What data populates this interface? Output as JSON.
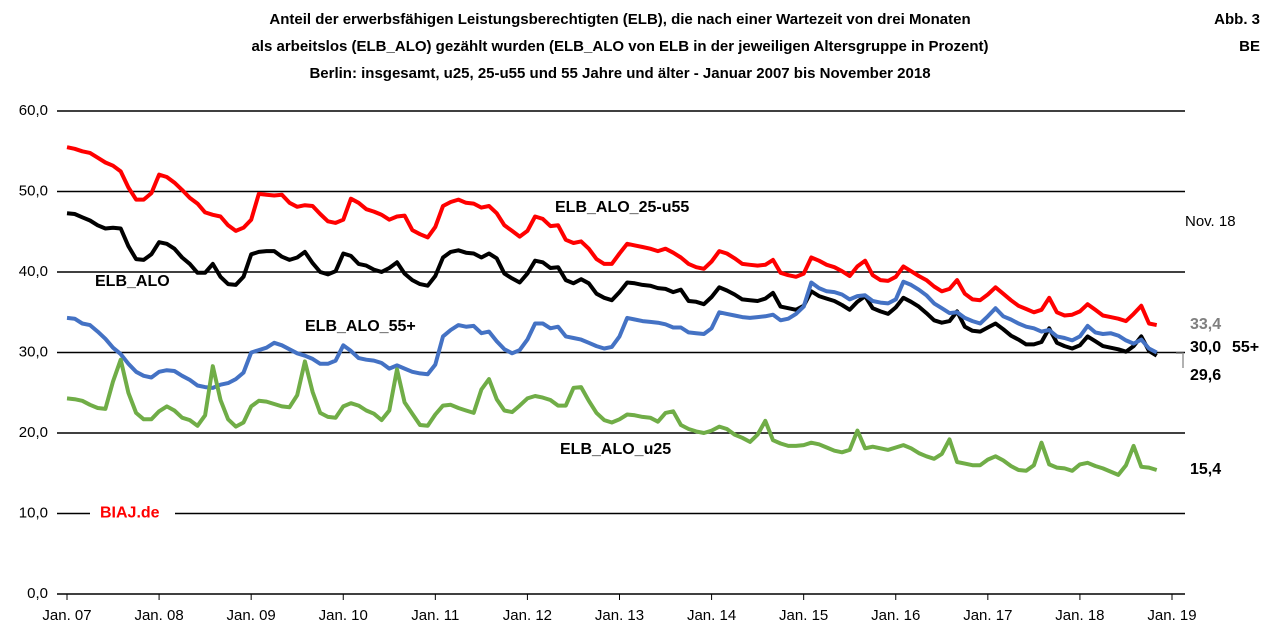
{
  "chart_data": {
    "type": "line",
    "title": [
      "Anteil der erwerbsfähigen Leistungsberechtigten (ELB), die nach einer Wartezeit von drei Monaten",
      "als arbeitslos (ELB_ALO) gezählt wurden (ELB_ALO von ELB in der jeweiligen Altersgruppe in Prozent)",
      "Berlin: insgesamt, u25,  25-u55 und 55 Jahre und älter - Januar 2007 bis November 2018"
    ],
    "figure_label": "Abb. 3",
    "region": "BE",
    "source": "BIAJ.de",
    "end_date_label": "Nov. 18",
    "categories": [
      "Jan. 07",
      null,
      null,
      null,
      null,
      null,
      null,
      null,
      null,
      null,
      null,
      null,
      "Jan. 08",
      null,
      null,
      null,
      null,
      null,
      null,
      null,
      null,
      null,
      null,
      null,
      "Jan. 09",
      null,
      null,
      null,
      null,
      null,
      null,
      null,
      null,
      null,
      null,
      null,
      "Jan. 10",
      null,
      null,
      null,
      null,
      null,
      null,
      null,
      null,
      null,
      null,
      null,
      "Jan. 11",
      null,
      null,
      null,
      null,
      null,
      null,
      null,
      null,
      null,
      null,
      null,
      "Jan. 12",
      null,
      null,
      null,
      null,
      null,
      null,
      null,
      null,
      null,
      null,
      null,
      "Jan. 13",
      null,
      null,
      null,
      null,
      null,
      null,
      null,
      null,
      null,
      null,
      null,
      "Jan. 14",
      null,
      null,
      null,
      null,
      null,
      null,
      null,
      null,
      null,
      null,
      null,
      "Jan. 15",
      null,
      null,
      null,
      null,
      null,
      null,
      null,
      null,
      null,
      null,
      null,
      "Jan. 16",
      null,
      null,
      null,
      null,
      null,
      null,
      null,
      null,
      null,
      null,
      null,
      "Jan. 17",
      null,
      null,
      null,
      null,
      null,
      null,
      null,
      null,
      null,
      null,
      null,
      "Jan. 18",
      null,
      null,
      null,
      null,
      null,
      null,
      null,
      null,
      null,
      null,
      null,
      "Jan. 19"
    ],
    "ylim": [
      0,
      60
    ],
    "yticks": [
      {
        "value": 0,
        "label": "0,0"
      },
      {
        "value": 10,
        "label": "10,0"
      },
      {
        "value": 20,
        "label": "20,0"
      },
      {
        "value": 30,
        "label": "30,0"
      },
      {
        "value": 40,
        "label": "40,0"
      },
      {
        "value": 50,
        "label": "50,0"
      },
      {
        "value": 60,
        "label": "60,0"
      }
    ],
    "grid": true,
    "series": [
      {
        "name": "ELB_ALO_25-u55",
        "color": "#ff0000",
        "end_label": "33,4",
        "end_label_color": "#7f7f7f",
        "values": [
          55.5,
          55.3,
          55.0,
          54.8,
          54.2,
          53.6,
          53.2,
          52.5,
          50.5,
          49.0,
          49.0,
          49.8,
          52.1,
          51.8,
          51.1,
          50.2,
          49.2,
          48.5,
          47.4,
          47.1,
          46.9,
          45.8,
          45.1,
          45.5,
          46.5,
          49.7,
          49.6,
          49.5,
          49.6,
          48.6,
          48.1,
          48.3,
          48.2,
          47.2,
          46.3,
          46.1,
          46.5,
          49.1,
          48.6,
          47.8,
          47.5,
          47.1,
          46.5,
          46.9,
          47.0,
          45.2,
          44.7,
          44.3,
          45.6,
          48.2,
          48.7,
          49.0,
          48.6,
          48.5,
          48.0,
          48.2,
          47.3,
          45.8,
          45.1,
          44.4,
          45.1,
          46.9,
          46.6,
          45.7,
          45.8,
          44.0,
          43.6,
          43.8,
          42.9,
          41.6,
          41.0,
          41.0,
          42.3,
          43.5,
          43.3,
          43.1,
          42.9,
          42.6,
          42.9,
          42.4,
          41.8,
          41.0,
          40.6,
          40.4,
          41.3,
          42.6,
          42.3,
          41.7,
          41.0,
          40.9,
          40.8,
          40.9,
          41.5,
          39.9,
          39.6,
          39.4,
          39.8,
          41.8,
          41.4,
          40.9,
          40.6,
          40.1,
          39.5,
          40.7,
          41.4,
          39.6,
          39.0,
          38.9,
          39.4,
          40.7,
          40.1,
          39.5,
          39.0,
          38.2,
          37.6,
          37.9,
          39.0,
          37.3,
          36.6,
          36.5,
          37.2,
          38.1,
          37.3,
          36.5,
          35.8,
          35.4,
          35.0,
          35.3,
          36.8,
          35.0,
          34.6,
          34.7,
          35.1,
          36.0,
          35.3,
          34.6,
          34.4,
          34.2,
          33.9,
          34.8,
          35.8,
          33.6,
          33.4,
          null,
          null
        ]
      },
      {
        "name": "ELB_ALO",
        "color": "#000000",
        "end_label": "29,6",
        "end_label_color": "#000000",
        "values": [
          47.3,
          47.2,
          46.8,
          46.4,
          45.8,
          45.4,
          45.5,
          45.4,
          43.2,
          41.6,
          41.5,
          42.2,
          43.7,
          43.5,
          42.9,
          41.8,
          41.0,
          39.9,
          39.9,
          41.0,
          39.4,
          38.5,
          38.4,
          39.4,
          42.2,
          42.5,
          42.6,
          42.6,
          41.9,
          41.5,
          41.8,
          42.5,
          41.1,
          40.0,
          39.7,
          40.1,
          42.3,
          42.0,
          41.0,
          40.8,
          40.3,
          40.0,
          40.5,
          41.2,
          39.8,
          39.0,
          38.5,
          38.3,
          39.5,
          41.8,
          42.5,
          42.7,
          42.4,
          42.3,
          41.8,
          42.3,
          41.7,
          39.8,
          39.2,
          38.7,
          39.8,
          41.4,
          41.2,
          40.5,
          40.6,
          39.0,
          38.6,
          39.1,
          38.6,
          37.3,
          36.8,
          36.5,
          37.5,
          38.7,
          38.6,
          38.4,
          38.3,
          38.0,
          37.9,
          37.5,
          37.8,
          36.4,
          36.3,
          36.0,
          36.9,
          38.1,
          37.7,
          37.2,
          36.6,
          36.5,
          36.4,
          36.7,
          37.4,
          35.7,
          35.5,
          35.3,
          35.8,
          37.6,
          37.0,
          36.7,
          36.4,
          35.9,
          35.3,
          36.3,
          37.0,
          35.5,
          35.1,
          34.8,
          35.6,
          36.8,
          36.3,
          35.7,
          34.9,
          34.0,
          33.7,
          33.9,
          35.1,
          33.2,
          32.7,
          32.6,
          33.1,
          33.6,
          32.9,
          32.1,
          31.6,
          31.0,
          31.0,
          31.3,
          33.0,
          31.2,
          30.8,
          30.5,
          30.9,
          32.0,
          31.4,
          30.8,
          30.6,
          30.4,
          30.1,
          30.8,
          32.0,
          30.2,
          29.6,
          null,
          null
        ]
      },
      {
        "name": "ELB_ALO_55+",
        "color": "#4472c4",
        "end_label": "30,0",
        "end_label_color": "#000000",
        "end_suffix": "55+",
        "values": [
          34.3,
          34.2,
          33.6,
          33.4,
          32.6,
          31.7,
          30.6,
          29.8,
          28.6,
          27.6,
          27.1,
          26.9,
          27.6,
          27.8,
          27.7,
          27.1,
          26.6,
          25.9,
          25.7,
          25.6,
          26.0,
          26.2,
          26.7,
          27.5,
          30.0,
          30.3,
          30.6,
          31.2,
          30.9,
          30.4,
          29.9,
          29.6,
          29.2,
          28.6,
          28.6,
          29.0,
          30.9,
          30.2,
          29.3,
          29.1,
          29.0,
          28.7,
          28.0,
          28.4,
          28.0,
          27.6,
          27.4,
          27.3,
          28.5,
          32.0,
          32.8,
          33.4,
          33.2,
          33.3,
          32.4,
          32.6,
          31.4,
          30.4,
          29.9,
          30.3,
          31.6,
          33.6,
          33.6,
          33.0,
          33.2,
          32.0,
          31.8,
          31.6,
          31.2,
          30.8,
          30.5,
          30.7,
          32.0,
          34.3,
          34.1,
          33.9,
          33.8,
          33.7,
          33.5,
          33.1,
          33.1,
          32.5,
          32.4,
          32.3,
          33.0,
          35.0,
          34.8,
          34.6,
          34.4,
          34.3,
          34.4,
          34.5,
          34.7,
          34.0,
          34.2,
          34.8,
          35.7,
          38.7,
          38.0,
          37.6,
          37.5,
          37.2,
          36.6,
          37.0,
          37.1,
          36.4,
          36.2,
          36.1,
          36.6,
          38.8,
          38.4,
          37.8,
          37.1,
          36.1,
          35.5,
          34.9,
          35.0,
          34.3,
          33.9,
          33.6,
          34.5,
          35.5,
          34.5,
          34.1,
          33.6,
          33.2,
          33.0,
          32.6,
          32.8,
          32.0,
          31.8,
          31.5,
          32.0,
          33.3,
          32.5,
          32.3,
          32.4,
          32.1,
          31.5,
          31.1,
          31.6,
          30.5,
          30.0,
          null,
          null
        ]
      },
      {
        "name": "ELB_ALO_u25",
        "color": "#70ad47",
        "end_label": "15,4",
        "end_label_color": "#000000",
        "values": [
          24.3,
          24.2,
          24.0,
          23.5,
          23.1,
          23.0,
          26.4,
          29.1,
          25.0,
          22.5,
          21.7,
          21.7,
          22.7,
          23.3,
          22.8,
          21.9,
          21.6,
          20.9,
          22.2,
          28.3,
          24.1,
          21.7,
          20.8,
          21.3,
          23.3,
          24.0,
          23.9,
          23.6,
          23.3,
          23.2,
          24.7,
          28.9,
          25.1,
          22.5,
          22.0,
          21.9,
          23.3,
          23.7,
          23.4,
          22.8,
          22.4,
          21.6,
          22.8,
          27.9,
          23.8,
          22.4,
          21.0,
          20.9,
          22.3,
          23.4,
          23.5,
          23.1,
          22.8,
          22.5,
          25.4,
          26.7,
          24.2,
          22.8,
          22.6,
          23.4,
          24.3,
          24.6,
          24.4,
          24.1,
          23.4,
          23.4,
          25.6,
          25.7,
          24.0,
          22.5,
          21.6,
          21.3,
          21.7,
          22.3,
          22.2,
          22.0,
          21.9,
          21.4,
          22.5,
          22.7,
          21.0,
          20.5,
          20.2,
          20.0,
          20.3,
          20.8,
          20.5,
          19.8,
          19.4,
          18.9,
          19.8,
          21.5,
          19.1,
          18.7,
          18.4,
          18.4,
          18.5,
          18.8,
          18.6,
          18.2,
          17.8,
          17.6,
          17.9,
          20.3,
          18.1,
          18.3,
          18.1,
          17.9,
          18.2,
          18.5,
          18.1,
          17.5,
          17.1,
          16.8,
          17.4,
          19.2,
          16.4,
          16.2,
          16.0,
          16.0,
          16.7,
          17.1,
          16.6,
          15.9,
          15.4,
          15.3,
          16.0,
          18.8,
          16.1,
          15.7,
          15.6,
          15.3,
          16.1,
          16.3,
          15.9,
          15.6,
          15.2,
          14.8,
          16.0,
          18.4,
          15.8,
          15.7,
          15.4,
          null,
          null
        ]
      }
    ]
  }
}
